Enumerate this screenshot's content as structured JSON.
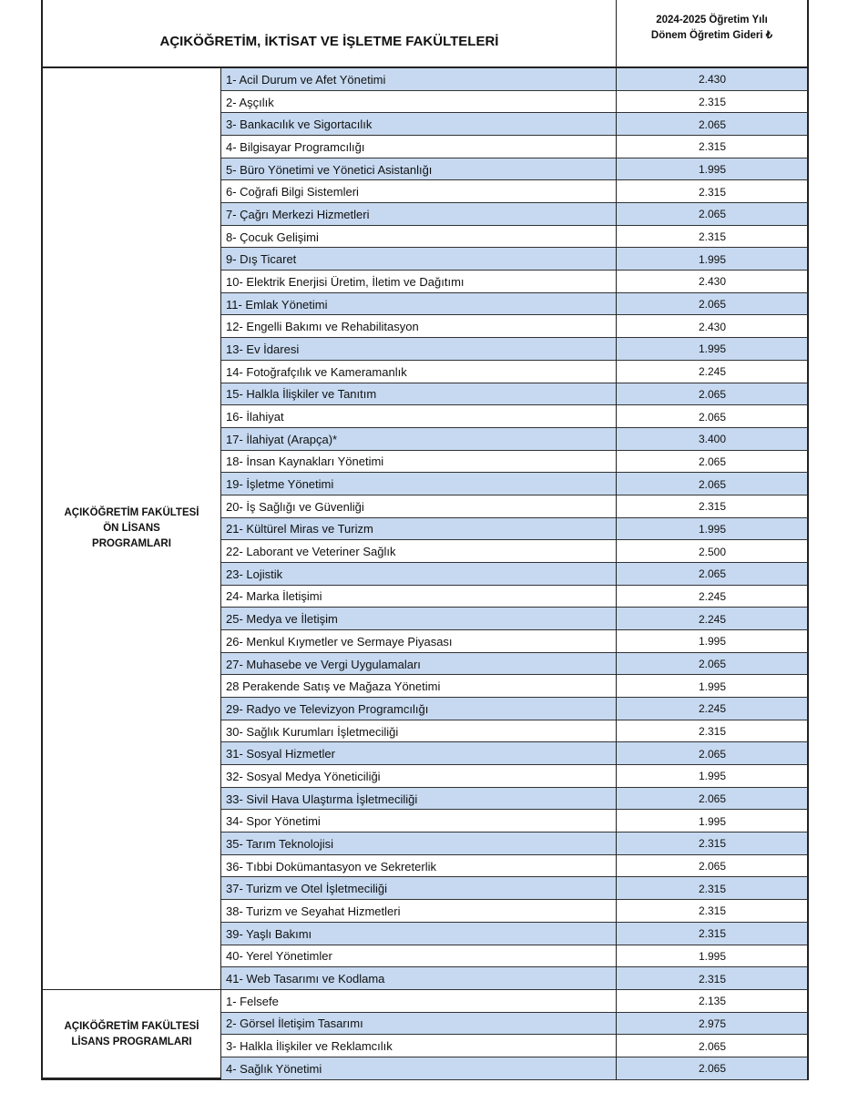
{
  "header": {
    "title": "AÇIKÖĞRETİM, İKTİSAT VE İŞLETME FAKÜLTELERİ",
    "fee_header": [
      "2024-2025 Öğretim Yılı",
      "Dönem Öğretim Gideri ₺"
    ]
  },
  "groups": [
    {
      "label": [
        "AÇIKÖĞRETİM FAKÜLTESİ",
        "ÖN LİSANS",
        "PROGRAMLARI"
      ],
      "rows": [
        [
          "1- Acil Durum ve Afet Yönetimi",
          "2.430"
        ],
        [
          "2- Aşçılık",
          "2.315"
        ],
        [
          "3- Bankacılık ve Sigortacılık",
          "2.065"
        ],
        [
          "4- Bilgisayar Programcılığı",
          "2.315"
        ],
        [
          "5- Büro Yönetimi ve Yönetici Asistanlığı",
          "1.995"
        ],
        [
          "6- Coğrafi Bilgi Sistemleri",
          "2.315"
        ],
        [
          "7- Çağrı Merkezi Hizmetleri",
          "2.065"
        ],
        [
          "8- Çocuk Gelişimi",
          "2.315"
        ],
        [
          "9- Dış Ticaret",
          "1.995"
        ],
        [
          "10- Elektrik Enerjisi Üretim, İletim ve Dağıtımı",
          "2.430"
        ],
        [
          "11- Emlak Yönetimi",
          "2.065"
        ],
        [
          "12- Engelli Bakımı ve Rehabilitasyon",
          "2.430"
        ],
        [
          "13- Ev İdaresi",
          "1.995"
        ],
        [
          "14- Fotoğrafçılık ve Kameramanlık",
          "2.245"
        ],
        [
          "15- Halkla İlişkiler ve Tanıtım",
          "2.065"
        ],
        [
          "16- İlahiyat",
          "2.065"
        ],
        [
          "17- İlahiyat (Arapça)*",
          "3.400"
        ],
        [
          "18- İnsan Kaynakları Yönetimi",
          "2.065"
        ],
        [
          "19- İşletme Yönetimi",
          "2.065"
        ],
        [
          "20- İş Sağlığı ve Güvenliği",
          "2.315"
        ],
        [
          "21- Kültürel Miras ve Turizm",
          "1.995"
        ],
        [
          "22- Laborant ve Veteriner Sağlık",
          "2.500"
        ],
        [
          "23- Lojistik",
          "2.065"
        ],
        [
          "24- Marka İletişimi",
          "2.245"
        ],
        [
          "25- Medya ve İletişim",
          "2.245"
        ],
        [
          "26- Menkul Kıymetler ve Sermaye Piyasası",
          "1.995"
        ],
        [
          "27- Muhasebe ve Vergi Uygulamaları",
          "2.065"
        ],
        [
          "28 Perakende Satış ve Mağaza Yönetimi",
          "1.995"
        ],
        [
          "29- Radyo ve Televizyon Programcılığı",
          "2.245"
        ],
        [
          "30- Sağlık Kurumları İşletmeciliği",
          "2.315"
        ],
        [
          "31- Sosyal Hizmetler",
          "2.065"
        ],
        [
          "32- Sosyal Medya Yöneticiliği",
          "1.995"
        ],
        [
          "33- Sivil Hava Ulaştırma İşletmeciliği",
          "2.065"
        ],
        [
          "34- Spor Yönetimi",
          "1.995"
        ],
        [
          "35- Tarım Teknolojisi",
          "2.315"
        ],
        [
          "36- Tıbbi Dokümantasyon ve Sekreterlik",
          "2.065"
        ],
        [
          "37- Turizm ve Otel İşletmeciliği",
          "2.315"
        ],
        [
          "38- Turizm ve Seyahat Hizmetleri",
          "2.315"
        ],
        [
          "39- Yaşlı Bakımı",
          "2.315"
        ],
        [
          "40- Yerel Yönetimler",
          "1.995"
        ],
        [
          "41- Web Tasarımı ve Kodlama",
          "2.315"
        ]
      ]
    },
    {
      "label": [
        "AÇIKÖĞRETİM FAKÜLTESİ",
        "LİSANS PROGRAMLARI"
      ],
      "rows": [
        [
          "1- Felsefe",
          "2.135"
        ],
        [
          "2- Görsel İletişim Tasarımı",
          "2.975"
        ],
        [
          "3- Halkla İlişkiler ve Reklamcılık",
          "2.065"
        ],
        [
          "4- Sağlık Yönetimi",
          "2.065"
        ]
      ]
    }
  ]
}
